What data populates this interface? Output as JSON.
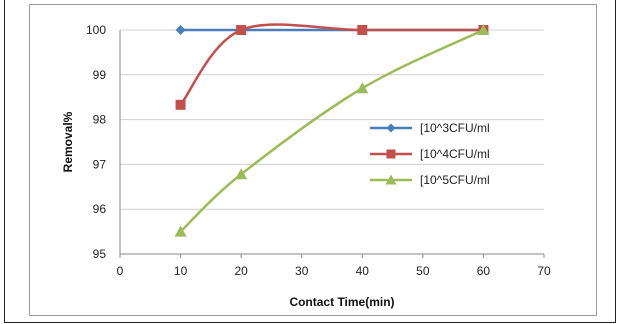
{
  "chart_data": {
    "type": "line",
    "title": "",
    "xlabel": "Contact Time(min)",
    "ylabel": "Removal%",
    "xlim": [
      0,
      70
    ],
    "ylim": [
      95,
      100
    ],
    "xticks": [
      "0",
      "10",
      "20",
      "30",
      "40",
      "50",
      "60",
      "70"
    ],
    "yticks": [
      "95",
      "96",
      "97",
      "98",
      "99",
      "100"
    ],
    "grid": "horizontal",
    "legend_position": "right",
    "series": [
      {
        "name": "[10^3CFU/ml",
        "color": "#4a7ebb",
        "marker": "diamond",
        "x": [
          10,
          20,
          40,
          60
        ],
        "y": [
          100,
          100,
          100,
          100
        ]
      },
      {
        "name": "[10^4CFU/ml",
        "color": "#c0504d",
        "marker": "square",
        "x": [
          10,
          20,
          40,
          60
        ],
        "y": [
          98.33,
          100,
          100,
          100
        ]
      },
      {
        "name": "[10^5CFU/ml",
        "color": "#9bbb59",
        "marker": "triangle",
        "x": [
          10,
          20,
          40,
          60
        ],
        "y": [
          95.5,
          96.78,
          98.7,
          100
        ]
      }
    ]
  }
}
